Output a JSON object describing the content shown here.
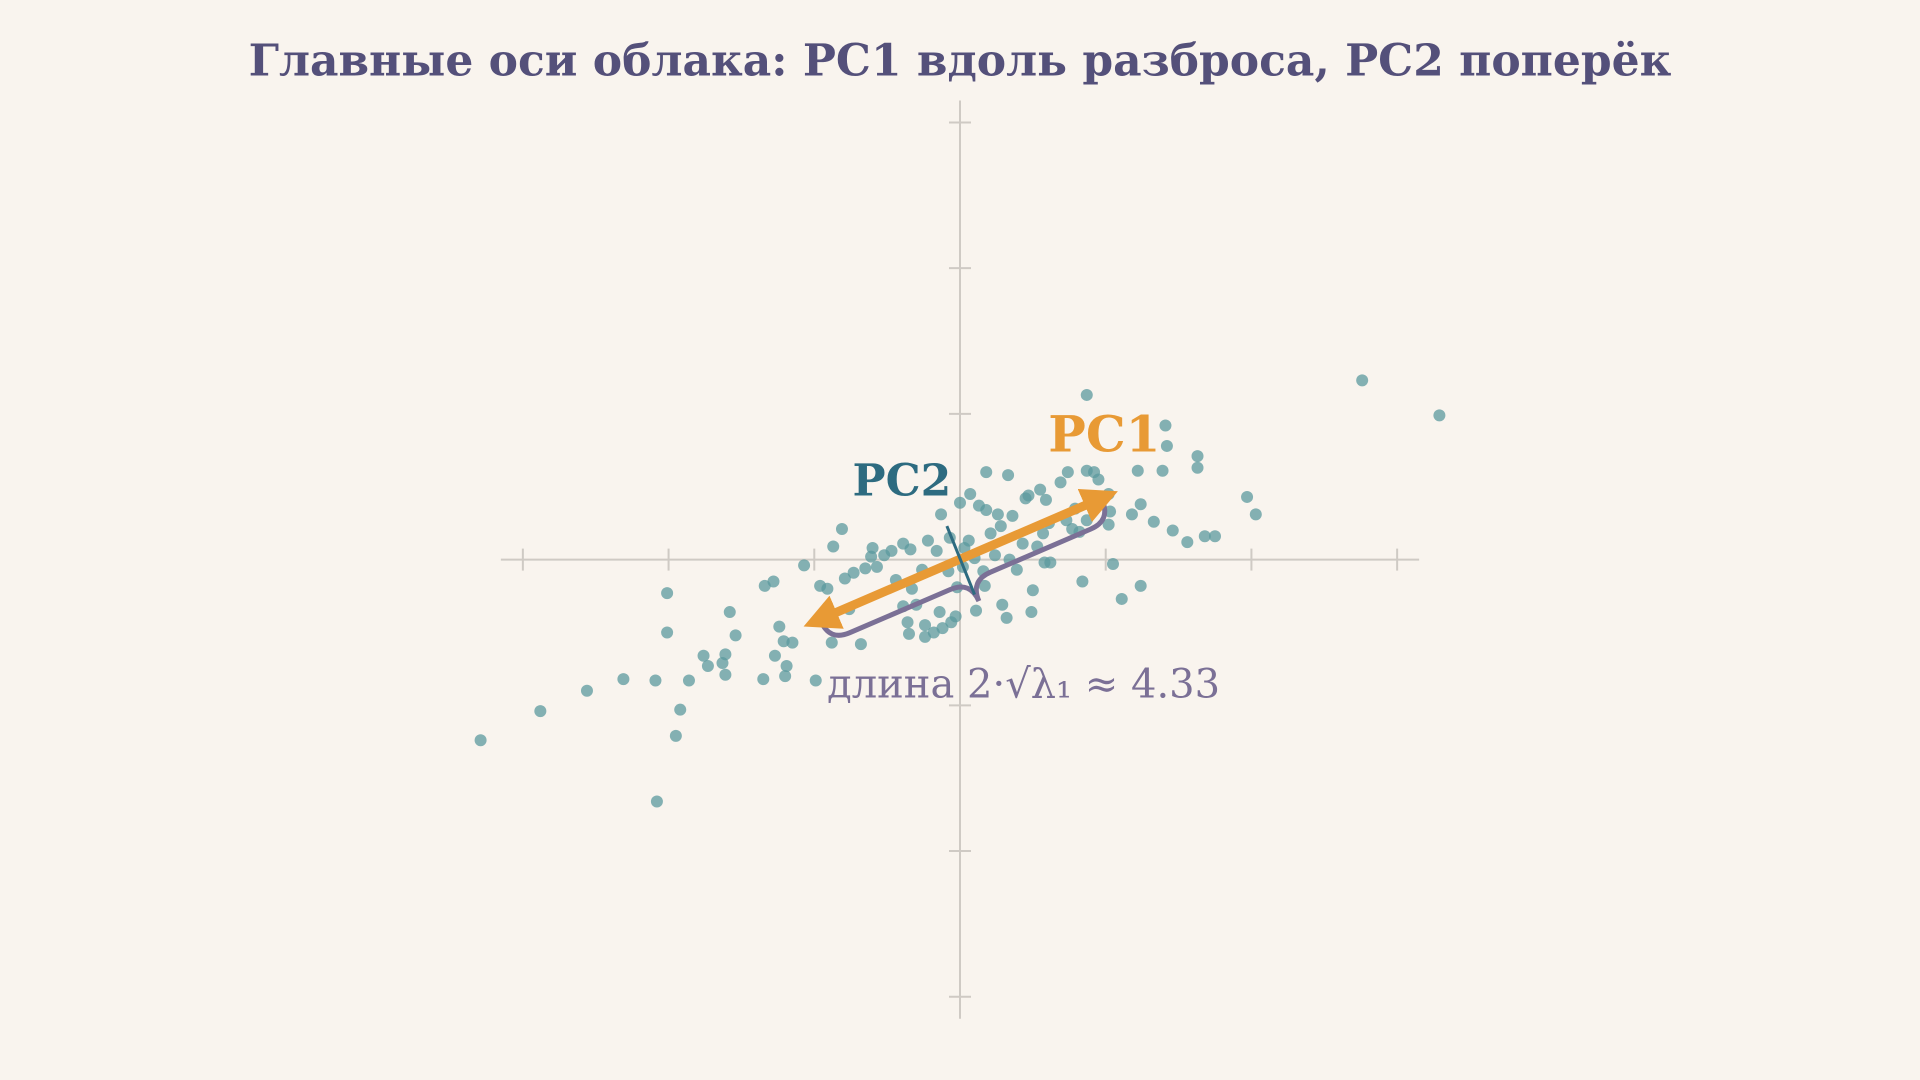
{
  "chart_data": {
    "type": "scatter",
    "title": "Главные оси облака: PC1 вдоль разброса, PC2 поперёк",
    "x": [
      -3.29,
      -2.88,
      -2.56,
      -2.31,
      -2.09,
      -2.08,
      -1.95,
      -1.92,
      -2.01,
      -2.01,
      -1.86,
      -1.76,
      -1.73,
      -1.63,
      -1.61,
      -1.61,
      -1.58,
      -1.54,
      -1.35,
      -1.34,
      -1.28,
      -1.27,
      -1.24,
      -1.21,
      -1.19,
      -1.2,
      -1.15,
      -1.07,
      -0.99,
      -0.96,
      -0.93,
      -0.91,
      -0.91,
      -0.87,
      -0.81,
      -0.88,
      -0.79,
      -0.76,
      -0.73,
      -0.68,
      -0.65,
      -0.61,
      -0.6,
      -0.57,
      -0.52,
      -0.47,
      -0.44,
      -0.39,
      -0.39,
      -0.36,
      -0.34,
      -0.33,
      -0.35,
      -0.3,
      -0.26,
      -0.24,
      -0.24,
      -0.22,
      -0.18,
      -0.16,
      -0.14,
      -0.13,
      -0.12,
      -0.08,
      -0.07,
      -0.06,
      -0.03,
      -0.02,
      0,
      0.02,
      0.03,
      0.06,
      0.07,
      0.1,
      0.11,
      0.13,
      0.16,
      0.17,
      0.18,
      0.18,
      0.21,
      0.24,
      0.26,
      0.28,
      0.29,
      0.32,
      0.33,
      0.34,
      0.36,
      0.39,
      0.43,
      0.45,
      0.47,
      0.49,
      0.5,
      0.53,
      0.55,
      0.57,
      0.58,
      0.59,
      0.61,
      0.62,
      0.69,
      0.73,
      0.74,
      0.77,
      0.79,
      0.82,
      0.84,
      0.87,
      0.87,
      0.87,
      0.92,
      0.95,
      1.02,
      1.02,
      1.03,
      1.05,
      1.11,
      1.18,
      1.22,
      1.24,
      1.24,
      1.33,
      1.39,
      1.41,
      1.42,
      1.46,
      1.56,
      1.63,
      1.63,
      1.68,
      1.75,
      1.97,
      2.03,
      2.76,
      3.29
    ],
    "values": [
      -1.24,
      -1.04,
      -0.9,
      -0.82,
      -0.83,
      -1.66,
      -1.21,
      -1.03,
      -0.23,
      -0.5,
      -0.83,
      -0.66,
      -0.73,
      -0.71,
      -0.65,
      -0.79,
      -0.36,
      -0.52,
      -0.82,
      -0.18,
      -0.15,
      -0.66,
      -0.46,
      -0.56,
      -0.73,
      -0.8,
      -0.57,
      -0.04,
      -0.83,
      -0.18,
      -0.41,
      -0.33,
      -0.2,
      0.09,
      0.21,
      -0.57,
      -0.13,
      -0.34,
      -0.09,
      -0.58,
      -0.06,
      0.02,
      0.08,
      -0.05,
      0.03,
      0.06,
      -0.14,
      0.11,
      -0.32,
      -0.43,
      0.07,
      -0.2,
      -0.51,
      -0.31,
      -0.07,
      -0.45,
      -0.53,
      0.13,
      -0.5,
      0.06,
      -0.36,
      0.31,
      -0.47,
      -0.08,
      0.15,
      -0.43,
      -0.39,
      -0.19,
      0.39,
      -0.05,
      0.08,
      0.13,
      0.45,
      0.01,
      -0.35,
      0.37,
      -0.08,
      -0.18,
      0.6,
      0.34,
      0.18,
      0.03,
      0.31,
      0.23,
      -0.31,
      -0.4,
      0.58,
      0,
      0.3,
      -0.07,
      0.11,
      0.42,
      0.44,
      -0.36,
      -0.21,
      0.09,
      0.48,
      0.18,
      -0.02,
      0.41,
      0.25,
      -0.02,
      0.53,
      0.27,
      0.6,
      0.21,
      0.35,
      0.19,
      -0.15,
      1.13,
      0.27,
      0.61,
      0.6,
      0.55,
      0.45,
      0.24,
      0.33,
      -0.03,
      -0.27,
      0.31,
      0.61,
      0.38,
      -0.18,
      0.26,
      0.61,
      0.92,
      0.78,
      0.2,
      0.12,
      0.71,
      0.63,
      0.16,
      0.16,
      0.43,
      0.31,
      1.23,
      0.99
    ],
    "color": "#5b9a9d",
    "xlim": [
      -3.5,
      3.5
    ],
    "ylim": [
      -3.5,
      3.5
    ],
    "xticks": [
      -3,
      -2,
      -1,
      0,
      1,
      2,
      3
    ],
    "yticks": [
      -3,
      -2,
      -1,
      0,
      1,
      2,
      3
    ],
    "annotations": [
      {
        "text": "PC1",
        "color": "#e89a35",
        "from": [
          -0.96,
          -0.41
        ],
        "to": [
          0.97,
          0.42
        ]
      },
      {
        "text": "PC2",
        "color": "#2d6b80",
        "from": [
          -0.09,
          0.23
        ],
        "to": [
          0.1,
          -0.24
        ]
      },
      {
        "text": "длина 2·√λ₁ ≈ 4.33",
        "color": "#7b7096"
      }
    ]
  }
}
